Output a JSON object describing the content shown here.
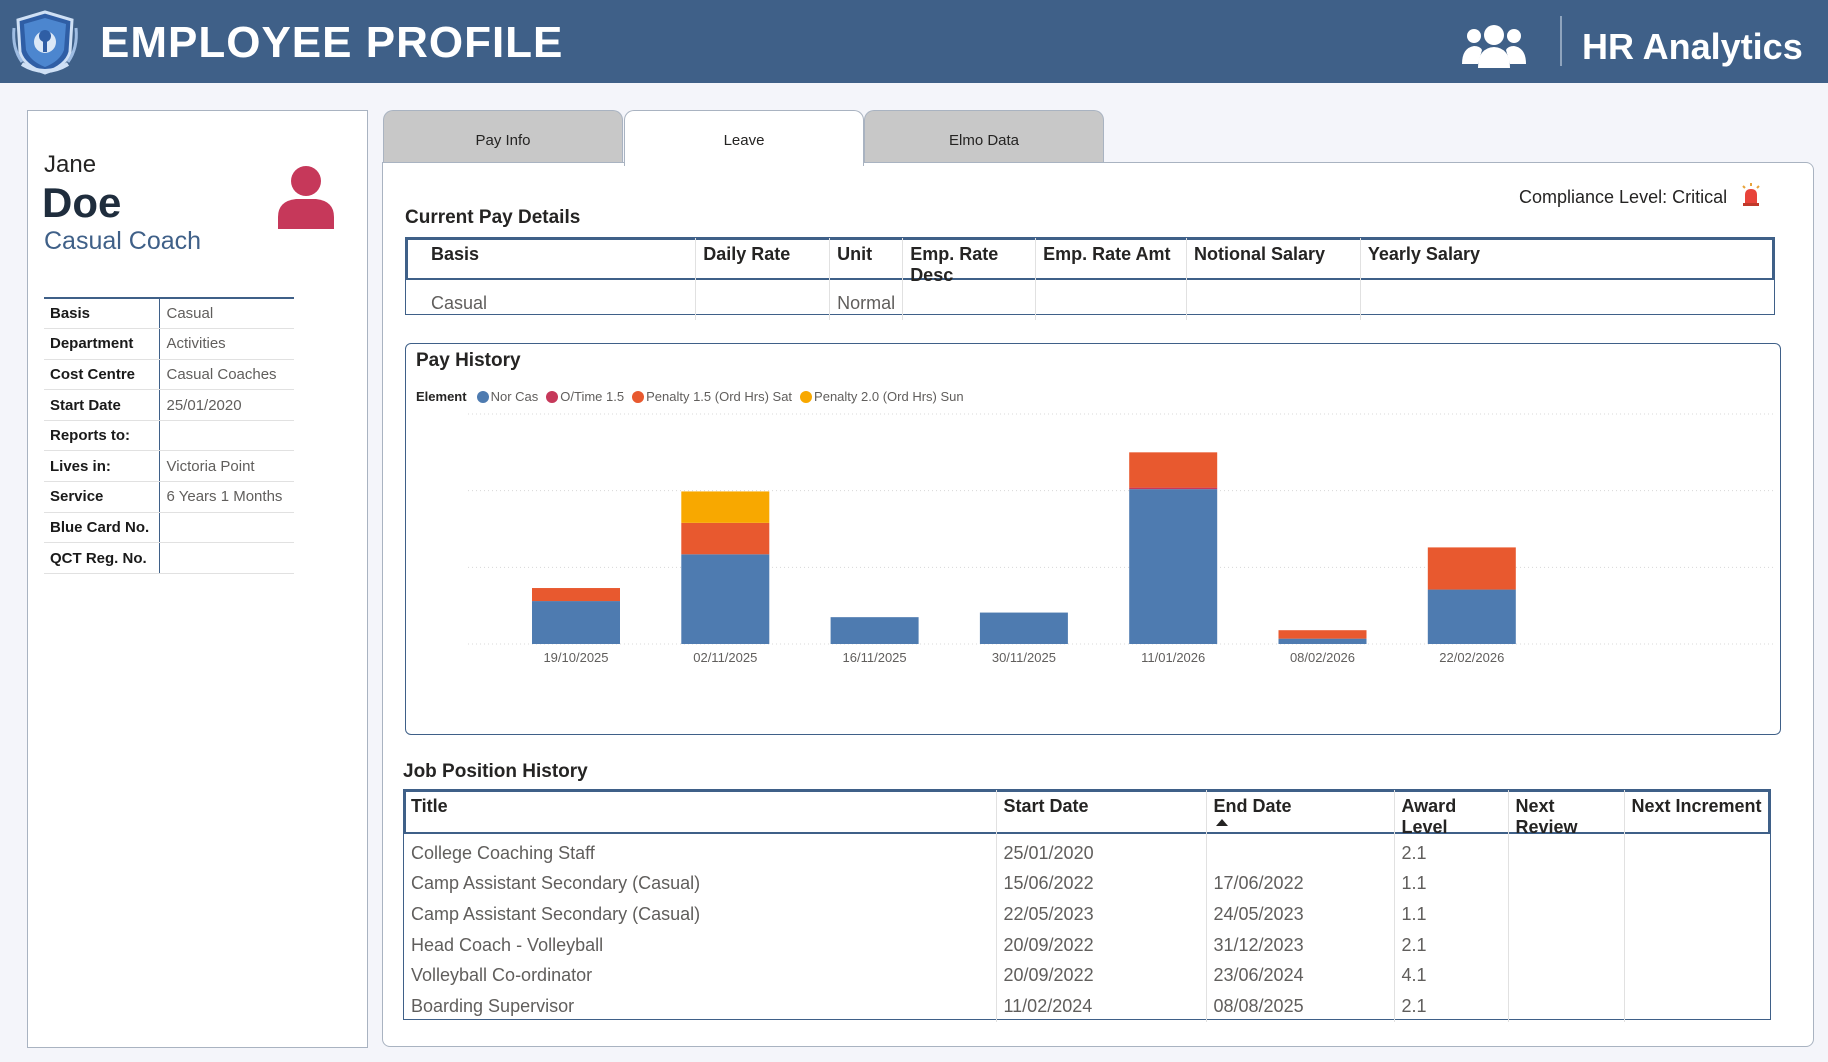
{
  "header": {
    "title": "EMPLOYEE PROFILE",
    "right_title": "HR Analytics",
    "bg_color": "#3f6088"
  },
  "profile": {
    "first_name": "Jane",
    "last_name": "Doe",
    "role": "Casual Coach",
    "avatar_color": "#c6385a",
    "fields": [
      {
        "label": "Basis",
        "value": "Casual"
      },
      {
        "label": "Department",
        "value": "Activities"
      },
      {
        "label": "Cost Centre",
        "value": "Casual Coaches"
      },
      {
        "label": "Start Date",
        "value": "25/01/2020"
      },
      {
        "label": "Reports to:",
        "value": ""
      },
      {
        "label": "Lives in:",
        "value": "Victoria Point"
      },
      {
        "label": "Service",
        "value": "6 Years 1 Months"
      },
      {
        "label": "Blue Card No.",
        "value": ""
      },
      {
        "label": "QCT Reg. No.",
        "value": ""
      }
    ]
  },
  "tabs": [
    {
      "label": "Pay Info",
      "active": false
    },
    {
      "label": "Leave",
      "active": true
    },
    {
      "label": "Elmo Data",
      "active": false
    }
  ],
  "compliance": {
    "text": "Compliance Level: Critical",
    "icon": "alarm-icon"
  },
  "current_pay": {
    "title": "Current Pay Details",
    "columns": [
      "Basis",
      "Daily Rate",
      "Unit",
      "Emp. Rate Desc",
      "Emp. Rate Amt",
      "Notional Salary",
      "Yearly Salary"
    ],
    "rows": [
      [
        "Casual",
        "",
        "Normal",
        "",
        "",
        "",
        ""
      ]
    ]
  },
  "pay_history": {
    "title": "Pay History",
    "legend_label": "Element"
  },
  "chart_data": {
    "type": "bar",
    "stacked": true,
    "categories": [
      "19/10/2025",
      "02/11/2025",
      "16/11/2025",
      "30/11/2025",
      "11/01/2026",
      "08/02/2026",
      "22/02/2026"
    ],
    "series": [
      {
        "name": "Nor Cas",
        "color": "#4e7bb0",
        "values": [
          56,
          117,
          35,
          41,
          202,
          7,
          71
        ]
      },
      {
        "name": "O/Time 1.5",
        "color": "#c6385a",
        "values": [
          0,
          0,
          0,
          0,
          2,
          0,
          0
        ]
      },
      {
        "name": "Penalty 1.5 (Ord Hrs) Sat",
        "color": "#e8592f",
        "values": [
          17,
          41,
          0,
          0,
          46,
          11,
          55
        ]
      },
      {
        "name": "Penalty 2.0 (Ord Hrs) Sun",
        "color": "#f8a800",
        "values": [
          0,
          41,
          0,
          0,
          0,
          0,
          0
        ]
      }
    ],
    "ylim": [
      0,
      300
    ],
    "grid": true
  },
  "job_history": {
    "title": "Job Position History",
    "columns": [
      "Title",
      "Start Date",
      "End Date",
      "Award Level",
      "Next Review",
      "Next Increment"
    ],
    "sorted_column": 2,
    "rows": [
      [
        "College Coaching Staff",
        "25/01/2020",
        "",
        "2.1",
        "",
        ""
      ],
      [
        "Camp Assistant Secondary (Casual)",
        "15/06/2022",
        "17/06/2022",
        "1.1",
        "",
        ""
      ],
      [
        "Camp Assistant Secondary (Casual)",
        "22/05/2023",
        "24/05/2023",
        "1.1",
        "",
        ""
      ],
      [
        "Head Coach - Volleyball",
        "20/09/2022",
        "31/12/2023",
        "2.1",
        "",
        ""
      ],
      [
        "Volleyball Co-ordinator",
        "20/09/2022",
        "23/06/2024",
        "4.1",
        "",
        ""
      ],
      [
        "Boarding Supervisor",
        "11/02/2024",
        "08/08/2025",
        "2.1",
        "",
        ""
      ]
    ]
  }
}
